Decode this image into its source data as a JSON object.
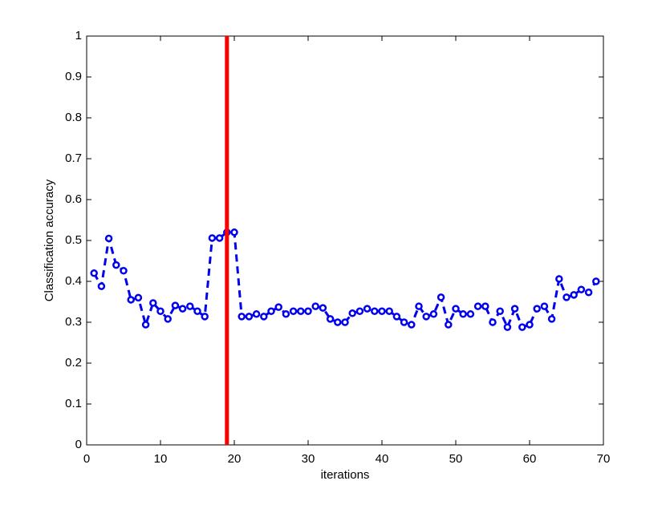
{
  "chart_data": {
    "type": "line",
    "x_label": "iterations",
    "y_label": "Classification accuracy",
    "x": [
      1,
      2,
      3,
      4,
      5,
      6,
      7,
      8,
      9,
      10,
      11,
      12,
      13,
      14,
      15,
      16,
      17,
      18,
      19,
      20,
      21,
      22,
      23,
      24,
      25,
      26,
      27,
      28,
      29,
      30,
      31,
      32,
      33,
      34,
      35,
      36,
      37,
      38,
      39,
      40,
      41,
      42,
      43,
      44,
      45,
      46,
      47,
      48,
      49,
      50,
      51,
      52,
      53,
      54,
      55,
      56,
      57,
      58,
      59,
      60,
      61,
      62,
      63,
      64,
      65,
      66,
      67,
      68,
      69
    ],
    "series": [
      {
        "color": "#0000ee",
        "values": [
          0.42,
          0.388,
          0.505,
          0.44,
          0.426,
          0.355,
          0.36,
          0.294,
          0.347,
          0.327,
          0.308,
          0.341,
          0.333,
          0.339,
          0.327,
          0.314,
          0.506,
          0.506,
          0.52,
          0.52,
          0.314,
          0.314,
          0.32,
          0.314,
          0.327,
          0.337,
          0.32,
          0.327,
          0.327,
          0.327,
          0.339,
          0.335,
          0.308,
          0.3,
          0.3,
          0.322,
          0.327,
          0.333,
          0.327,
          0.327,
          0.327,
          0.314,
          0.3,
          0.294,
          0.339,
          0.314,
          0.32,
          0.361,
          0.294,
          0.333,
          0.32,
          0.32,
          0.339,
          0.339,
          0.3,
          0.327,
          0.288,
          0.333,
          0.288,
          0.294,
          0.333,
          0.339,
          0.308,
          0.406,
          0.361,
          0.367,
          0.38,
          0.373,
          0.4
        ]
      }
    ],
    "vline": {
      "x": 19,
      "color": "#ff0000"
    },
    "xlim": [
      0,
      70
    ],
    "xticks": [
      0,
      10,
      20,
      30,
      40,
      50,
      60,
      70
    ],
    "ylim": [
      0,
      1
    ],
    "yticks": [
      0,
      0.1,
      0.2,
      0.3,
      0.4,
      0.5,
      0.6,
      0.7,
      0.8,
      0.9,
      1
    ],
    "grid": false
  }
}
